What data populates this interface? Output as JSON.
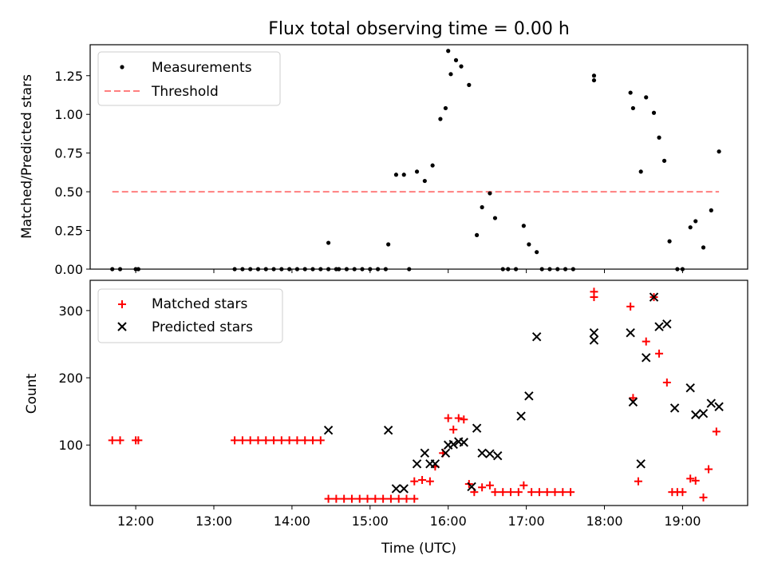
{
  "chart_data": [
    {
      "type": "scatter",
      "title": "Flux total observing time = 0.00 h",
      "ylabel": "Matched/Predicted stars",
      "xlabel": "",
      "xlim": [
        "11:25",
        "19:50"
      ],
      "ylim": [
        0,
        1.45
      ],
      "yticks": [
        0.0,
        0.25,
        0.5,
        0.75,
        1.0,
        1.25
      ],
      "ytick_labels": [
        "0.00",
        "0.25",
        "0.50",
        "0.75",
        "1.00",
        "1.25"
      ],
      "legend": {
        "placement": "top-left",
        "entries": [
          {
            "label": "Measurements",
            "marker": "dot",
            "color": "#000000"
          },
          {
            "label": "Threshold",
            "marker": "dashed-line",
            "color": "#ff7f7f"
          }
        ]
      },
      "series": [
        {
          "name": "Measurements",
          "color": "#000000",
          "points": [
            [
              "11:42",
              0
            ],
            [
              "11:48",
              0
            ],
            [
              "12:00",
              0
            ],
            [
              "12:02",
              0
            ],
            [
              "13:16",
              0
            ],
            [
              "13:22",
              0
            ],
            [
              "13:28",
              0
            ],
            [
              "13:34",
              0
            ],
            [
              "13:40",
              0
            ],
            [
              "13:46",
              0
            ],
            [
              "13:52",
              0
            ],
            [
              "13:58",
              0
            ],
            [
              "14:04",
              0
            ],
            [
              "14:10",
              0
            ],
            [
              "14:16",
              0
            ],
            [
              "14:22",
              0
            ],
            [
              "14:28",
              0
            ],
            [
              "14:34",
              0
            ],
            [
              "14:28",
              0.17
            ],
            [
              "14:36",
              0
            ],
            [
              "14:42",
              0
            ],
            [
              "14:48",
              0
            ],
            [
              "14:54",
              0
            ],
            [
              "15:00",
              0
            ],
            [
              "15:06",
              0
            ],
            [
              "15:12",
              0
            ],
            [
              "15:14",
              0.16
            ],
            [
              "15:20",
              0.61
            ],
            [
              "15:26",
              0.61
            ],
            [
              "15:30",
              0
            ],
            [
              "15:36",
              0.63
            ],
            [
              "15:42",
              0.57
            ],
            [
              "15:48",
              0.67
            ],
            [
              "15:54",
              0.97
            ],
            [
              "15:58",
              1.04
            ],
            [
              "16:00",
              1.41
            ],
            [
              "16:02",
              1.26
            ],
            [
              "16:06",
              1.35
            ],
            [
              "16:10",
              1.31
            ],
            [
              "16:16",
              1.19
            ],
            [
              "16:22",
              0.22
            ],
            [
              "16:26",
              0.4
            ],
            [
              "16:32",
              0.49
            ],
            [
              "16:36",
              0.33
            ],
            [
              "16:42",
              0
            ],
            [
              "16:46",
              0
            ],
            [
              "16:52",
              0
            ],
            [
              "16:58",
              0.28
            ],
            [
              "17:02",
              0.16
            ],
            [
              "17:08",
              0.11
            ],
            [
              "17:12",
              0
            ],
            [
              "17:18",
              0
            ],
            [
              "17:24",
              0
            ],
            [
              "17:30",
              0
            ],
            [
              "17:36",
              0
            ],
            [
              "17:52",
              1.25
            ],
            [
              "17:52",
              1.22
            ],
            [
              "18:20",
              1.14
            ],
            [
              "18:22",
              1.04
            ],
            [
              "18:28",
              0.63
            ],
            [
              "18:32",
              1.11
            ],
            [
              "18:38",
              1.01
            ],
            [
              "18:42",
              0.85
            ],
            [
              "18:46",
              0.7
            ],
            [
              "18:50",
              0.18
            ],
            [
              "18:56",
              0
            ],
            [
              "19:00",
              0
            ],
            [
              "19:06",
              0.27
            ],
            [
              "19:10",
              0.31
            ],
            [
              "19:16",
              0.14
            ],
            [
              "19:22",
              0.38
            ],
            [
              "19:28",
              0.76
            ]
          ]
        },
        {
          "name": "Threshold",
          "color": "#ff7f7f",
          "line": "dashed",
          "points": [
            [
              "11:42",
              0.5
            ],
            [
              "19:28",
              0.5
            ]
          ]
        }
      ]
    },
    {
      "type": "scatter",
      "title": "",
      "ylabel": "Count",
      "xlabel": "Time (UTC)",
      "xlim": [
        "11:25",
        "19:50"
      ],
      "ylim": [
        10,
        345
      ],
      "xticks": [
        "12:00",
        "13:00",
        "14:00",
        "15:00",
        "16:00",
        "17:00",
        "18:00",
        "19:00"
      ],
      "yticks": [
        100,
        200,
        300
      ],
      "ytick_labels": [
        "100",
        "200",
        "300"
      ],
      "legend": {
        "placement": "top-left",
        "entries": [
          {
            "label": "Matched stars",
            "marker": "plus",
            "color": "#ff0000"
          },
          {
            "label": "Predicted stars",
            "marker": "x",
            "color": "#000000"
          }
        ]
      },
      "series": [
        {
          "name": "Matched stars",
          "color": "#ff0000",
          "marker": "plus",
          "points": [
            [
              "11:42",
              107
            ],
            [
              "11:48",
              107
            ],
            [
              "12:00",
              107
            ],
            [
              "12:02",
              107
            ],
            [
              "13:16",
              107
            ],
            [
              "13:22",
              107
            ],
            [
              "13:28",
              107
            ],
            [
              "13:34",
              107
            ],
            [
              "13:40",
              107
            ],
            [
              "13:46",
              107
            ],
            [
              "13:52",
              107
            ],
            [
              "13:58",
              107
            ],
            [
              "14:04",
              107
            ],
            [
              "14:10",
              107
            ],
            [
              "14:16",
              107
            ],
            [
              "14:22",
              107
            ],
            [
              "14:28",
              20
            ],
            [
              "14:34",
              20
            ],
            [
              "14:40",
              20
            ],
            [
              "14:46",
              20
            ],
            [
              "14:52",
              20
            ],
            [
              "14:58",
              20
            ],
            [
              "15:04",
              20
            ],
            [
              "15:10",
              20
            ],
            [
              "15:16",
              20
            ],
            [
              "15:22",
              20
            ],
            [
              "15:28",
              20
            ],
            [
              "15:34",
              20
            ],
            [
              "15:34",
              46
            ],
            [
              "15:40",
              48
            ],
            [
              "15:46",
              46
            ],
            [
              "15:50",
              68
            ],
            [
              "15:56",
              88
            ],
            [
              "16:00",
              140
            ],
            [
              "16:04",
              123
            ],
            [
              "16:08",
              140
            ],
            [
              "16:12",
              138
            ],
            [
              "16:16",
              42
            ],
            [
              "16:20",
              30
            ],
            [
              "16:26",
              37
            ],
            [
              "16:32",
              40
            ],
            [
              "16:36",
              30
            ],
            [
              "16:42",
              30
            ],
            [
              "16:48",
              30
            ],
            [
              "16:54",
              30
            ],
            [
              "16:58",
              40
            ],
            [
              "17:04",
              30
            ],
            [
              "17:10",
              30
            ],
            [
              "17:16",
              30
            ],
            [
              "17:22",
              30
            ],
            [
              "17:28",
              30
            ],
            [
              "17:34",
              30
            ],
            [
              "17:52",
              328
            ],
            [
              "17:52",
              320
            ],
            [
              "18:20",
              306
            ],
            [
              "18:22",
              170
            ],
            [
              "18:26",
              46
            ],
            [
              "18:32",
              254
            ],
            [
              "18:38",
              320
            ],
            [
              "18:42",
              236
            ],
            [
              "18:48",
              193
            ],
            [
              "18:52",
              30
            ],
            [
              "18:56",
              30
            ],
            [
              "19:00",
              30
            ],
            [
              "19:06",
              50
            ],
            [
              "19:10",
              47
            ],
            [
              "19:16",
              22
            ],
            [
              "19:20",
              64
            ],
            [
              "19:26",
              120
            ]
          ]
        },
        {
          "name": "Predicted stars",
          "color": "#000000",
          "marker": "x",
          "points": [
            [
              "14:28",
              122
            ],
            [
              "15:14",
              122
            ],
            [
              "15:20",
              35
            ],
            [
              "15:26",
              35
            ],
            [
              "15:36",
              72
            ],
            [
              "15:42",
              88
            ],
            [
              "15:46",
              72
            ],
            [
              "15:50",
              72
            ],
            [
              "15:58",
              88
            ],
            [
              "16:00",
              100
            ],
            [
              "16:04",
              101
            ],
            [
              "16:08",
              105
            ],
            [
              "16:12",
              104
            ],
            [
              "16:18",
              38
            ],
            [
              "16:22",
              125
            ],
            [
              "16:26",
              88
            ],
            [
              "16:32",
              87
            ],
            [
              "16:38",
              84
            ],
            [
              "16:56",
              143
            ],
            [
              "17:02",
              173
            ],
            [
              "17:08",
              261
            ],
            [
              "17:52",
              267
            ],
            [
              "17:52",
              256
            ],
            [
              "18:20",
              267
            ],
            [
              "18:22",
              164
            ],
            [
              "18:28",
              72
            ],
            [
              "18:32",
              230
            ],
            [
              "18:38",
              320
            ],
            [
              "18:42",
              276
            ],
            [
              "18:48",
              280
            ],
            [
              "18:54",
              155
            ],
            [
              "19:06",
              185
            ],
            [
              "19:10",
              145
            ],
            [
              "19:16",
              147
            ],
            [
              "19:22",
              162
            ],
            [
              "19:28",
              157
            ]
          ]
        }
      ]
    }
  ]
}
